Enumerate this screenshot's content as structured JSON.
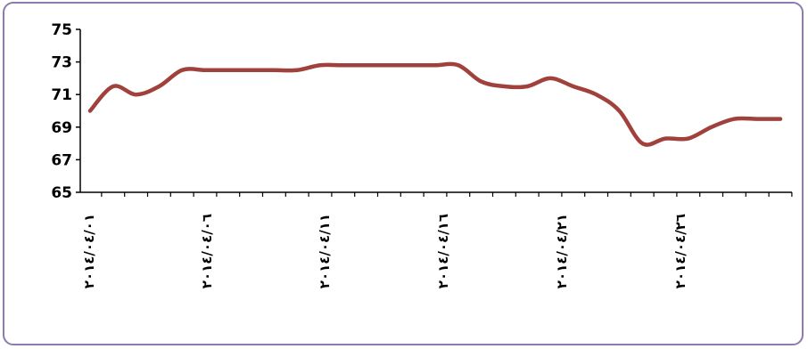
{
  "chart_data": {
    "type": "line",
    "title": "",
    "xlabel": "",
    "ylabel": "",
    "ylim": [
      65,
      75
    ],
    "yticks": [
      65,
      67,
      69,
      71,
      73,
      75
    ],
    "x_tick_labels": [
      "٢٠١٤/٠٤/٠١",
      "٢٠١٤/٠٤/٠٦",
      "٢٠١٤/٠٤/١١",
      "٢٠١٤/٠٤/١٦",
      "٢٠١٤/٠٤/٢١",
      "٢٠١٤/٠٤/٢٦"
    ],
    "grid": false,
    "legend": "none",
    "line_color": "#a0413c",
    "x": [
      1,
      2,
      3,
      4,
      5,
      6,
      7,
      8,
      9,
      10,
      11,
      12,
      13,
      14,
      15,
      16,
      17,
      18,
      19,
      20,
      21,
      22,
      23,
      24,
      25,
      26,
      27,
      28,
      29,
      30,
      31
    ],
    "values": [
      70.0,
      71.5,
      71.0,
      71.5,
      72.5,
      72.5,
      72.5,
      72.5,
      72.5,
      72.5,
      72.8,
      72.8,
      72.8,
      72.8,
      72.8,
      72.8,
      72.8,
      71.8,
      71.5,
      71.5,
      72.0,
      71.5,
      71.0,
      70.0,
      68.0,
      68.3,
      68.3,
      69.0,
      69.5,
      69.5,
      69.5
    ]
  }
}
